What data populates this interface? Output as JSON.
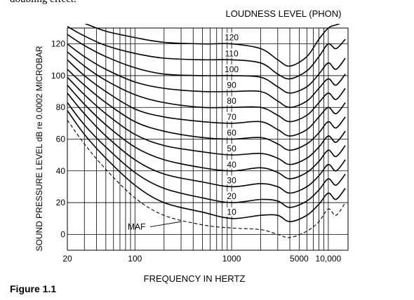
{
  "top_text": "doubling effect.",
  "figure_caption": "Figure 1.1",
  "chart_data": {
    "type": "line",
    "title": "LOUDNESS LEVEL (PHON)",
    "xlabel": "FREQUENCY IN HERTZ",
    "ylabel": "SOUND PRESSURE LEVEL dB re 0.0002 MICROBAR",
    "x_scale": "log",
    "xlim": [
      20,
      16000
    ],
    "ylim": [
      -10,
      130
    ],
    "x_ticks": [
      {
        "value": 20,
        "label": "20"
      },
      {
        "value": 100,
        "label": "100"
      },
      {
        "value": 1000,
        "label": "1000"
      },
      {
        "value": 5000,
        "label": "5000"
      },
      {
        "value": 10000,
        "label": "10,000"
      }
    ],
    "y_ticks": [
      {
        "value": 0,
        "label": "0"
      },
      {
        "value": 20,
        "label": "20"
      },
      {
        "value": 40,
        "label": "40"
      },
      {
        "value": 60,
        "label": "60"
      },
      {
        "value": 80,
        "label": "80"
      },
      {
        "value": 100,
        "label": "100"
      },
      {
        "value": 120,
        "label": "120"
      }
    ],
    "grid": true,
    "series": [
      {
        "name": "120",
        "x": [
          20,
          30,
          50,
          100,
          200,
          500,
          1000,
          2000,
          3000,
          4000,
          6000,
          8000,
          10000,
          12000,
          15000
        ],
        "y": [
          137,
          133,
          128,
          124,
          121,
          120,
          120,
          117,
          110,
          106,
          112,
          123,
          130,
          132,
          134
        ]
      },
      {
        "name": "110",
        "x": [
          20,
          30,
          50,
          100,
          200,
          500,
          1000,
          2000,
          3000,
          4000,
          6000,
          8000,
          10000,
          12000,
          15000
        ],
        "y": [
          131,
          125,
          119,
          114,
          111,
          110,
          110,
          108,
          101,
          98,
          103,
          112,
          120,
          117,
          123
        ]
      },
      {
        "name": "100",
        "x": [
          20,
          30,
          50,
          100,
          200,
          500,
          1000,
          2000,
          3000,
          4000,
          6000,
          8000,
          10000,
          12000,
          15000
        ],
        "y": [
          126,
          119,
          112,
          105,
          101,
          100,
          100,
          99,
          93,
          89,
          93,
          101,
          108,
          104,
          111
        ]
      },
      {
        "name": "90",
        "x": [
          20,
          30,
          50,
          100,
          200,
          500,
          1000,
          2000,
          3000,
          4000,
          6000,
          8000,
          10000,
          12000,
          15000
        ],
        "y": [
          120,
          112,
          104,
          96,
          92,
          90,
          90,
          90,
          84,
          80,
          84,
          92,
          98,
          94,
          101
        ]
      },
      {
        "name": "80",
        "x": [
          20,
          30,
          50,
          100,
          200,
          500,
          1000,
          2000,
          3000,
          4000,
          6000,
          8000,
          10000,
          12000,
          15000
        ],
        "y": [
          115,
          106,
          97,
          88,
          83,
          80,
          80,
          80,
          75,
          71,
          75,
          83,
          89,
          85,
          92
        ]
      },
      {
        "name": "70",
        "x": [
          20,
          30,
          50,
          100,
          200,
          500,
          1000,
          2000,
          3000,
          4000,
          6000,
          8000,
          10000,
          12000,
          15000
        ],
        "y": [
          110,
          100,
          90,
          79,
          74,
          71,
          70,
          71,
          66,
          62,
          66,
          74,
          80,
          76,
          83
        ]
      },
      {
        "name": "60",
        "x": [
          20,
          30,
          50,
          100,
          200,
          500,
          1000,
          2000,
          3000,
          4000,
          6000,
          8000,
          10000,
          12000,
          15000
        ],
        "y": [
          104,
          94,
          83,
          71,
          65,
          61,
          60,
          61,
          57,
          53,
          57,
          64,
          71,
          67,
          74
        ]
      },
      {
        "name": "50",
        "x": [
          20,
          30,
          50,
          100,
          200,
          500,
          1000,
          2000,
          3000,
          4000,
          6000,
          8000,
          10000,
          12000,
          15000
        ],
        "y": [
          99,
          88,
          76,
          63,
          56,
          52,
          50,
          51,
          48,
          44,
          48,
          55,
          62,
          58,
          65
        ]
      },
      {
        "name": "40",
        "x": [
          20,
          30,
          50,
          100,
          200,
          500,
          1000,
          2000,
          3000,
          4000,
          6000,
          8000,
          10000,
          12000,
          15000
        ],
        "y": [
          94,
          82,
          69,
          55,
          47,
          42,
          40,
          42,
          39,
          35,
          39,
          46,
          53,
          49,
          56
        ]
      },
      {
        "name": "30",
        "x": [
          20,
          30,
          50,
          100,
          200,
          500,
          1000,
          2000,
          3000,
          4000,
          6000,
          8000,
          10000,
          12000,
          15000
        ],
        "y": [
          89,
          76,
          62,
          47,
          38,
          33,
          30,
          32,
          30,
          26,
          30,
          37,
          44,
          40,
          47
        ]
      },
      {
        "name": "20",
        "x": [
          20,
          30,
          50,
          100,
          200,
          500,
          1000,
          2000,
          3000,
          4000,
          6000,
          8000,
          10000,
          12000,
          15000
        ],
        "y": [
          83,
          69,
          55,
          39,
          29,
          23,
          20,
          22,
          21,
          17,
          21,
          28,
          35,
          31,
          38
        ]
      },
      {
        "name": "10",
        "x": [
          20,
          30,
          50,
          100,
          200,
          500,
          1000,
          2000,
          3000,
          4000,
          6000,
          8000,
          10000,
          12000,
          15000
        ],
        "y": [
          78,
          63,
          48,
          31,
          20,
          14,
          10,
          12,
          12,
          8,
          12,
          19,
          26,
          22,
          29
        ]
      },
      {
        "name": "MAF",
        "dashed": true,
        "x": [
          20,
          30,
          50,
          100,
          200,
          500,
          1000,
          2000,
          3000,
          4000,
          6000,
          8000,
          10000,
          12000,
          15000
        ],
        "y": [
          72,
          57,
          41,
          23,
          12,
          6,
          4,
          3,
          0,
          -2,
          2,
          8,
          16,
          12,
          20
        ]
      }
    ],
    "annotations": [
      {
        "text": "MAF",
        "points_to": "MAF"
      }
    ]
  }
}
